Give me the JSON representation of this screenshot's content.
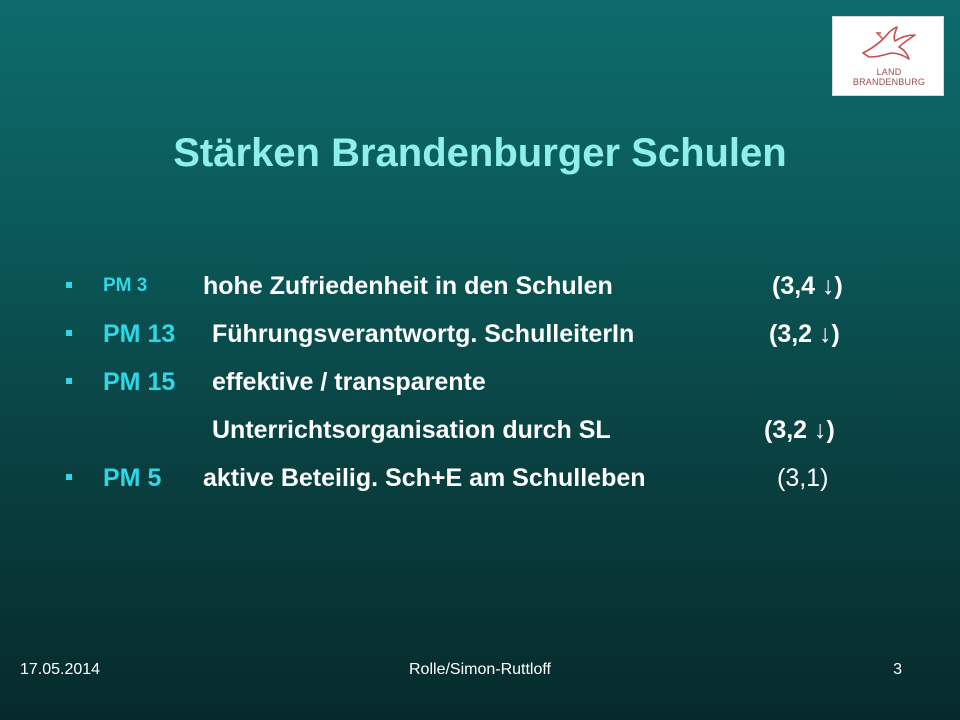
{
  "logo": {
    "line1": "LAND",
    "line2": "BRANDENBURG",
    "icon": "eagle-icon",
    "color": "#c0504d"
  },
  "slide": {
    "title": "Stärken Brandenburger Schulen",
    "items": [
      {
        "code": "PM 3",
        "text": "hohe Zufriedenheit in den Schulen",
        "score": "(3,4 ↓)"
      },
      {
        "code": "PM 13",
        "text": "Führungsverantwortg. SchulleiterIn",
        "score": "(3,2 ↓)"
      },
      {
        "code": "PM 15",
        "text": "effektive / transparente",
        "text2": "Unterrichtsorganisation durch SL",
        "score": "(3,2 ↓)"
      },
      {
        "code": "PM 5",
        "text": "aktive Beteilig. Sch+E am Schulleben",
        "score": "(3,1)"
      }
    ]
  },
  "footer": {
    "date": "17.05.2014",
    "author": "Rolle/Simon-Ruttloff",
    "page": "3"
  },
  "colors": {
    "title": "#8ff0e8",
    "accent": "#2fd6e6",
    "text": "#ffffff"
  }
}
